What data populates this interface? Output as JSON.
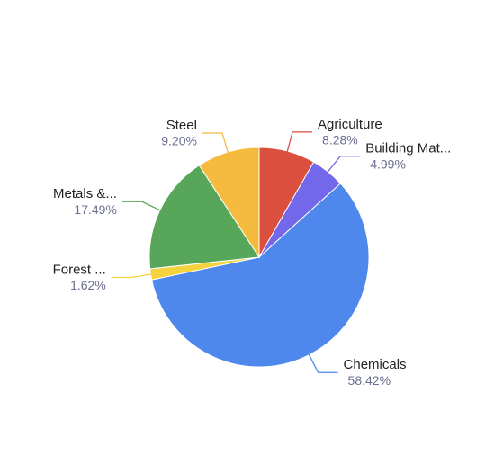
{
  "chart_data": {
    "type": "pie",
    "categories": [
      "Agriculture",
      "Building Mat...",
      "Chemicals",
      "Forest ...",
      "Metals &...",
      "Steel"
    ],
    "values": [
      8.28,
      4.99,
      58.42,
      1.62,
      17.49,
      9.2
    ],
    "value_labels": [
      "8.28%",
      "4.99%",
      "58.42%",
      "1.62%",
      "17.49%",
      "9.20%"
    ],
    "colors": [
      "#db4f3e",
      "#7367ea",
      "#4f88ec",
      "#f4d33f",
      "#57a65a",
      "#f4bb3f"
    ]
  }
}
